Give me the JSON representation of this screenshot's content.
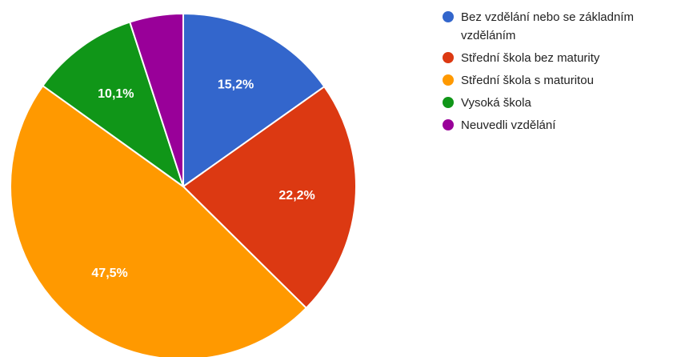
{
  "chart_data": {
    "type": "pie",
    "title": "",
    "slices": [
      {
        "label": "Bez vzdělání nebo se základním vzděláním",
        "value": 15.2,
        "display": "15,2%",
        "color": "#3366cc"
      },
      {
        "label": "Střední škola bez maturity",
        "value": 22.2,
        "display": "22,2%",
        "color": "#dc3912"
      },
      {
        "label": "Střední škola s maturitou",
        "value": 47.5,
        "display": "47,5%",
        "color": "#ff9900"
      },
      {
        "label": "Vysoká škola",
        "value": 10.1,
        "display": "10,1%",
        "color": "#109618"
      },
      {
        "label": "Neuvedli vzdělání",
        "value": 5.0,
        "display": "",
        "color": "#990099"
      }
    ],
    "legend_position": "right",
    "start_angle_deg": 0,
    "direction": "clockwise"
  }
}
